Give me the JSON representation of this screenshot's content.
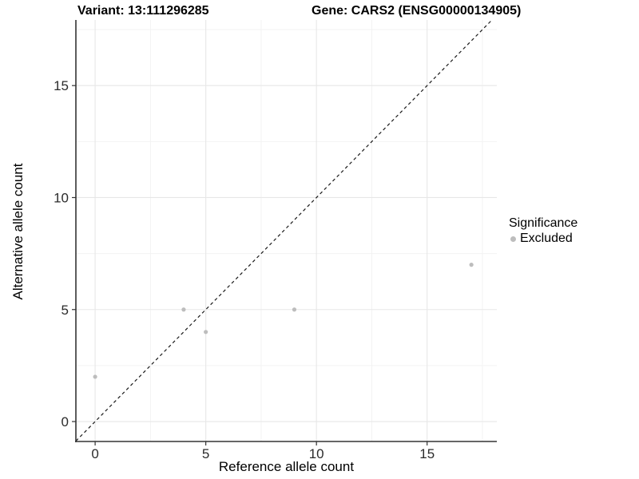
{
  "header": {
    "variant_title": "Variant: 13:111296285",
    "gene_title": "Gene: CARS2 (ENSG00000134905)"
  },
  "legend": {
    "title": "Significance",
    "items": [
      {
        "label": "Excluded",
        "color": "#bdbdbd"
      }
    ]
  },
  "colors": {
    "point": "#bdbdbd",
    "grid_major": "#e7e7e7",
    "grid_minor": "#f2f2f2",
    "axis_line": "#333333",
    "tick_mark": "#333333",
    "tick_label": "#2b2b2b",
    "reference_line": "#1a1a1a",
    "background": "#ffffff"
  },
  "chart_data": {
    "type": "scatter",
    "xlabel": "Reference allele count",
    "ylabel": "Alternative allele count",
    "xlim": [
      -0.87,
      18.15
    ],
    "ylim": [
      -0.89,
      17.93
    ],
    "x_ticks": [
      0,
      5,
      10,
      15
    ],
    "y_ticks": [
      0,
      5,
      10,
      15
    ],
    "x_minor": [
      2.5,
      7.5,
      12.5,
      17.5
    ],
    "y_minor": [
      2.5,
      7.5,
      12.5,
      17.5
    ],
    "grid": true,
    "legend_position": "right",
    "reference_line": {
      "type": "identity",
      "style": "dashed"
    },
    "series": [
      {
        "name": "Excluded",
        "color": "#bdbdbd",
        "points": [
          [
            0,
            2
          ],
          [
            4,
            5
          ],
          [
            5,
            4
          ],
          [
            9,
            5
          ],
          [
            17,
            7
          ]
        ]
      }
    ]
  }
}
